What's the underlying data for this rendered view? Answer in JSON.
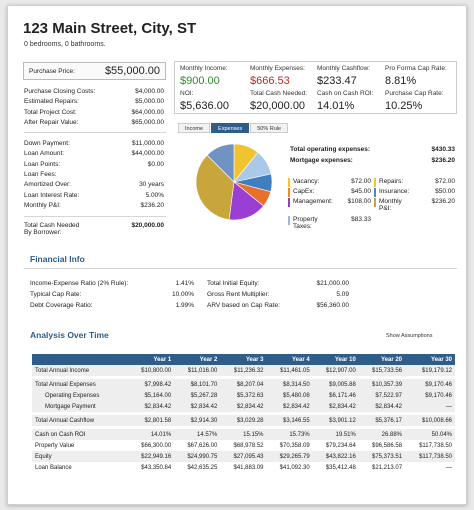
{
  "property": {
    "title": "123 Main Street, City, ST",
    "subtitle": "0 bedrooms, 0 bathrooms."
  },
  "purchase": {
    "label": "Purchase Price:",
    "value": "$55,000.00"
  },
  "costs": [
    {
      "label": "Purchase Closing Costs:",
      "value": "$4,000.00"
    },
    {
      "label": "Estimated Repairs:",
      "value": "$5,000.00"
    },
    {
      "label": "Total Project Cost:",
      "value": "$64,000.00"
    },
    {
      "label": "After Repair Value:",
      "value": "$65,000.00"
    }
  ],
  "loan": [
    {
      "label": "Down Payment:",
      "value": "$11,000.00"
    },
    {
      "label": "Loan Amount:",
      "value": "$44,000.00"
    },
    {
      "label": "Loan Points:",
      "value": "$0.00"
    },
    {
      "label": "Loan Fees:",
      "value": ""
    },
    {
      "label": "Amortized Over:",
      "value": "30 years"
    },
    {
      "label": "Loan Interest Rate:",
      "value": "5.00%"
    },
    {
      "label": "Monthly P&I:",
      "value": "$236.20"
    }
  ],
  "cash_needed": {
    "label1": "Total Cash Needed",
    "label2": "By Borrower:",
    "value": "$20,000.00"
  },
  "metrics": [
    {
      "label": "Monthly Income:",
      "value": "$900.00",
      "color": "green"
    },
    {
      "label": "Monthly Expenses:",
      "value": "$666.53",
      "color": "red"
    },
    {
      "label": "Monthly Cashflow:",
      "value": "$233.47",
      "color": ""
    },
    {
      "label": "Pro Forma Cap Rate:",
      "value": "8.81%",
      "color": ""
    },
    {
      "label": "NOI:",
      "value": "$5,636.00",
      "color": ""
    },
    {
      "label": "Total Cash Needed:",
      "value": "$20,000.00",
      "color": ""
    },
    {
      "label": "Cash on Cash ROI:",
      "value": "14.01%",
      "color": ""
    },
    {
      "label": "Purchase Cap Rate:",
      "value": "10.25%",
      "color": ""
    }
  ],
  "tabs": [
    {
      "label": "Income",
      "active": false
    },
    {
      "label": "Expenses",
      "active": true
    },
    {
      "label": "50% Rule",
      "active": false
    }
  ],
  "expenses_summary": [
    {
      "label": "Total operating expenses:",
      "value": "$430.33"
    },
    {
      "label": "Mortgage expenses:",
      "value": "$236.20"
    }
  ],
  "expense_items_left": [
    {
      "label": "Vacancy:",
      "value": "$72.00",
      "color": "#f3c623"
    },
    {
      "label": "CapEx:",
      "value": "$45.00",
      "color": "#f08a24"
    },
    {
      "label": "Management:",
      "value": "$108.00",
      "color": "#8e44ad"
    },
    {
      "label": "Property Taxes:",
      "value": "$83.33",
      "color": "#9ab8d8"
    }
  ],
  "expense_items_right": [
    {
      "label": "Repairs:",
      "value": "$72.00",
      "color": "#f3c623"
    },
    {
      "label": "Insurance:",
      "value": "$50.00",
      "color": "#4a8ac4"
    },
    {
      "label": "Monthly P&I:",
      "value": "$236.20",
      "color": "#c8a23a"
    }
  ],
  "pie": [
    {
      "name": "Vacancy",
      "value": 72,
      "color": "#f0c430"
    },
    {
      "name": "Repairs",
      "value": 72,
      "color": "#a9c9e8"
    },
    {
      "name": "Insurance",
      "value": 50,
      "color": "#3f7fbf"
    },
    {
      "name": "CapEx",
      "value": 45,
      "color": "#e8702a"
    },
    {
      "name": "Management",
      "value": 108,
      "color": "#9b3fd4"
    },
    {
      "name": "Monthly P&I",
      "value": 236.2,
      "color": "#c9a63b"
    },
    {
      "name": "Property Taxes",
      "value": 83.33,
      "color": "#6f93c2"
    }
  ],
  "financial": {
    "heading": "Financial Info",
    "left": [
      {
        "label": "Income-Expense Ratio (2% Rule):",
        "value": "1.41%"
      },
      {
        "label": "Typical Cap Rate:",
        "value": "10.00%"
      },
      {
        "label": "Debt Coverage Ratio:",
        "value": "1.99%"
      }
    ],
    "right": [
      {
        "label": "Total Initial Equity:",
        "value": "$21,000.00"
      },
      {
        "label": "Gross Rent Multiplier:",
        "value": "5.09"
      },
      {
        "label": "ARV based on Cap Rate:",
        "value": "$56,360.00"
      }
    ]
  },
  "analysis": {
    "heading": "Analysis Over Time",
    "toggle": "Show Assumptions",
    "columns": [
      "",
      "Year 1",
      "Year 2",
      "Year 3",
      "Year 4",
      "Year 10",
      "Year 20",
      "Year 30"
    ],
    "rows": [
      {
        "label": "Total Annual Income",
        "values": [
          "$10,800.00",
          "$11,016.00",
          "$11,236.32",
          "$11,461.05",
          "$12,907.00",
          "$15,733.56",
          "$19,179.12"
        ],
        "style": "alt"
      },
      {
        "label": "",
        "values": [],
        "style": "gap"
      },
      {
        "label": "Total Annual Expenses",
        "values": [
          "$7,998.42",
          "$8,101.70",
          "$8,207.04",
          "$8,314.50",
          "$9,005.88",
          "$10,357.39",
          "$9,170.46"
        ],
        "style": "alt"
      },
      {
        "label": "Operating Expenses",
        "values": [
          "$5,164.00",
          "$5,267.28",
          "$5,372.63",
          "$5,480.08",
          "$6,171.46",
          "$7,522.97",
          "$9,170.46"
        ],
        "style": "alt sub"
      },
      {
        "label": "Mortgage Payment",
        "values": [
          "$2,834.42",
          "$2,834.42",
          "$2,834.42",
          "$2,834.42",
          "$2,834.42",
          "$2,834.42",
          "—"
        ],
        "style": "alt sub"
      },
      {
        "label": "",
        "values": [],
        "style": "gap"
      },
      {
        "label": "Total Annual Cashflow",
        "values": [
          "$2,801.58",
          "$2,914.30",
          "$3,029.28",
          "$3,146.55",
          "$3,901.12",
          "$5,376.17",
          "$10,008.66"
        ],
        "style": "alt"
      },
      {
        "label": "",
        "values": [],
        "style": "gap"
      },
      {
        "label": "Cash on Cash ROI",
        "values": [
          "14.01%",
          "14.57%",
          "15.15%",
          "15.73%",
          "19.51%",
          "26.88%",
          "50.04%"
        ],
        "style": "alt"
      },
      {
        "label": "Property Value",
        "values": [
          "$66,300.00",
          "$67,626.00",
          "$68,978.52",
          "$70,358.09",
          "$79,234.64",
          "$96,586.58",
          "$117,738.50"
        ],
        "style": ""
      },
      {
        "label": "Equity",
        "values": [
          "$22,949.16",
          "$24,990.75",
          "$27,095.43",
          "$29,265.79",
          "$43,822.16",
          "$75,373.51",
          "$117,738.50"
        ],
        "style": "alt"
      },
      {
        "label": "Loan Balance",
        "values": [
          "$43,350.84",
          "$42,635.25",
          "$41,883.09",
          "$41,092.30",
          "$35,412.48",
          "$21,213.07",
          "—"
        ],
        "style": ""
      }
    ]
  }
}
